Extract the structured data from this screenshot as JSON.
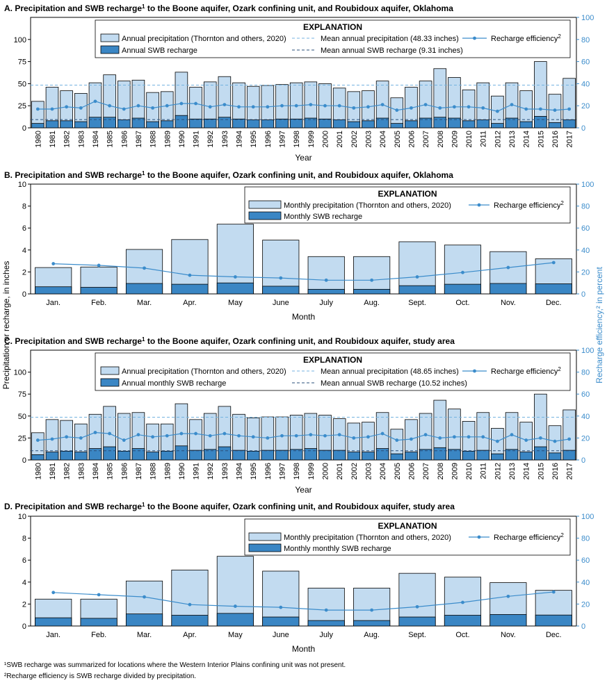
{
  "colors": {
    "precip": "#c2dbf0",
    "recharge": "#3a86c4",
    "efficiency": "#3b8ccb",
    "mean_precip_line": "#74b3e0",
    "mean_recharge_line": "#2a4f7a"
  },
  "axis_labels": {
    "left": "Precipitation or recharge, in inches",
    "right": "Recharge efficiency,² in percent"
  },
  "footnotes": [
    "¹SWB recharge was summarized for locations where the Western Interior Plains confining unit was not present.",
    "²Recharge efficiency is SWB recharge divided by precipitation."
  ],
  "chart_data": [
    {
      "id": "A",
      "type": "bar",
      "title": "A. Precipitation and SWB recharge¹ to the Boone aquifer, Ozark confining unit, and Roubidoux aquifer, Oklahoma",
      "xlabel": "Year",
      "ylim": [
        0,
        125
      ],
      "yticks": [
        0,
        25,
        50,
        75,
        100
      ],
      "y2lim": [
        0,
        100
      ],
      "y2ticks": [
        0,
        20,
        40,
        60,
        80,
        100
      ],
      "categories": [
        "1980",
        "1981",
        "1982",
        "1983",
        "1984",
        "1985",
        "1986",
        "1987",
        "1988",
        "1989",
        "1990",
        "1991",
        "1992",
        "1993",
        "1994",
        "1995",
        "1996",
        "1997",
        "1998",
        "1999",
        "2000",
        "2001",
        "2002",
        "2003",
        "2004",
        "2005",
        "2006",
        "2007",
        "2008",
        "2009",
        "2010",
        "2011",
        "2012",
        "2013",
        "2014",
        "2015",
        "2016",
        "2017"
      ],
      "series": [
        {
          "name": "Annual precipitation (Thornton and others, 2020)",
          "values": [
            30,
            46,
            42,
            39,
            51,
            60,
            53,
            54,
            40,
            41,
            63,
            46,
            52,
            58,
            51,
            47,
            48,
            49,
            51,
            52,
            50,
            45,
            41,
            42,
            53,
            34,
            46,
            53,
            67,
            57,
            43,
            51,
            36,
            51,
            42,
            75,
            38,
            56
          ]
        },
        {
          "name": "Annual SWB recharge",
          "values": [
            5,
            8,
            8,
            7,
            12,
            12,
            9,
            11,
            7,
            8,
            14,
            10,
            10,
            12,
            10,
            9,
            9,
            10,
            10,
            11,
            10,
            9,
            7,
            8,
            11,
            5,
            8,
            11,
            12,
            11,
            8,
            9,
            5,
            11,
            7,
            13,
            6,
            9
          ]
        },
        {
          "name": "Recharge efficiency²",
          "axis": "right",
          "values": [
            17,
            17,
            19,
            18,
            24,
            20,
            17,
            20,
            18,
            20,
            22,
            22,
            19,
            21,
            19,
            19,
            19,
            20,
            20,
            21,
            20,
            20,
            18,
            19,
            21,
            16,
            18,
            21,
            18,
            19,
            19,
            18,
            15,
            21,
            17,
            17,
            16,
            17
          ]
        }
      ],
      "mean_lines": [
        {
          "name": "Mean annual precipitation (48.33 inches)",
          "value": 48.33
        },
        {
          "name": "Mean annual SWB recharge (9.31 inches)",
          "value": 9.31
        }
      ],
      "legend": {
        "title": "EXPLANATION",
        "precip": "Annual precipitation (Thornton and others, 2020)",
        "recharge": "Annual SWB recharge",
        "mean_precip": "Mean annual precipitation (48.33 inches)",
        "mean_recharge": "Mean annual SWB recharge (9.31 inches)",
        "efficiency": "Recharge efficiency²"
      }
    },
    {
      "id": "B",
      "type": "bar",
      "title": "B. Precipitation and SWB recharge¹ to the Boone aquifer, Ozark confining unit, and Roubidoux aquifer, Oklahoma",
      "xlabel": "Month",
      "ylim": [
        0,
        10
      ],
      "yticks": [
        0,
        2,
        4,
        6,
        8,
        10
      ],
      "y2lim": [
        0,
        100
      ],
      "y2ticks": [
        0,
        20,
        40,
        60,
        80,
        100
      ],
      "categories": [
        "Jan.",
        "Feb.",
        "Mar.",
        "Apr.",
        "May",
        "June",
        "July",
        "Aug.",
        "Sept.",
        "Oct.",
        "Nov.",
        "Dec."
      ],
      "series": [
        {
          "name": "Monthly precipitation (Thornton and others, 2020)",
          "values": [
            2.4,
            2.45,
            4.05,
            4.95,
            6.35,
            4.9,
            3.4,
            3.4,
            4.75,
            4.45,
            3.85,
            3.2
          ]
        },
        {
          "name": "Monthly SWB recharge",
          "values": [
            0.65,
            0.6,
            0.95,
            0.88,
            1.0,
            0.7,
            0.42,
            0.42,
            0.75,
            0.88,
            0.95,
            0.92
          ]
        },
        {
          "name": "Recharge efficiency²",
          "axis": "right",
          "values": [
            27.5,
            26,
            23.5,
            17,
            15.5,
            14.5,
            12.5,
            12.5,
            15.5,
            19.5,
            24,
            28.5
          ]
        }
      ],
      "legend": {
        "title": "EXPLANATION",
        "precip": "Monthly precipitation (Thornton and others, 2020)",
        "recharge": "Monthly SWB recharge",
        "efficiency": "Recharge efficiency²"
      }
    },
    {
      "id": "C",
      "type": "bar",
      "title": "C. Precipitation and SWB recharge¹ to the Boone aquifer, Ozark confining unit, and Roubidoux aquifer, study area",
      "xlabel": "Year",
      "ylim": [
        0,
        125
      ],
      "yticks": [
        0,
        25,
        50,
        75,
        100
      ],
      "y2lim": [
        0,
        100
      ],
      "y2ticks": [
        0,
        20,
        40,
        60,
        80,
        100
      ],
      "categories": [
        "1980",
        "1981",
        "1982",
        "1983",
        "1984",
        "1985",
        "1986",
        "1987",
        "1988",
        "1989",
        "1990",
        "1991",
        "1992",
        "1993",
        "1994",
        "1995",
        "1996",
        "1997",
        "1998",
        "1999",
        "2000",
        "2001",
        "2002",
        "2003",
        "2004",
        "2005",
        "2006",
        "2007",
        "2008",
        "2009",
        "2010",
        "2011",
        "2012",
        "2013",
        "2014",
        "2015",
        "2016",
        "2017"
      ],
      "series": [
        {
          "name": "Annual precipitation (Thornton and others, 2020)",
          "values": [
            31,
            46,
            45,
            41,
            52,
            61,
            53,
            54,
            41,
            41,
            64,
            46,
            53,
            61,
            52,
            48,
            49,
            49,
            51,
            53,
            51,
            47,
            42,
            43,
            54,
            35,
            46,
            53,
            68,
            58,
            44,
            54,
            36,
            54,
            43,
            75,
            39,
            57
          ]
        },
        {
          "name": "Annual monthly SWB recharge",
          "values": [
            6,
            9,
            10,
            9,
            13,
            15,
            10,
            13,
            9,
            10,
            16,
            11,
            12,
            15,
            11,
            10,
            11,
            11,
            12,
            13,
            11,
            11,
            9,
            9,
            13,
            7,
            9,
            12,
            14,
            12,
            10,
            11,
            7,
            12,
            9,
            15,
            8,
            11
          ]
        },
        {
          "name": "Recharge efficiency²",
          "axis": "right",
          "values": [
            18,
            19,
            21,
            20,
            25,
            24,
            18,
            23,
            21,
            22,
            24,
            24,
            22,
            24,
            22,
            21,
            20,
            22,
            22,
            23,
            22,
            23,
            20,
            21,
            24,
            18,
            19,
            23,
            20,
            21,
            21,
            21,
            17,
            23,
            18,
            20,
            17,
            19
          ]
        }
      ],
      "mean_lines": [
        {
          "name": "Mean annual precipitation (48.65 inches)",
          "value": 48.65
        },
        {
          "name": "Mean annual SWB recharge (10.52 inches)",
          "value": 10.52
        }
      ],
      "legend": {
        "title": "EXPLANATION",
        "precip": "Annual precipitation (Thornton and others, 2020)",
        "recharge": "Annual monthly SWB recharge",
        "mean_precip": "Mean annual precipitation (48.65 inches)",
        "mean_recharge": "Mean annual SWB recharge (10.52 inches)",
        "efficiency": "Recharge efficiency²"
      }
    },
    {
      "id": "D",
      "type": "bar",
      "title": "D. Precipitation and SWB recharge¹ to the Boone aquifer, Ozark confining unit, and Roubidoux aquifer, study area",
      "xlabel": "Month",
      "ylim": [
        0,
        10
      ],
      "yticks": [
        0,
        2,
        4,
        6,
        8,
        10
      ],
      "y2lim": [
        0,
        100
      ],
      "y2ticks": [
        0,
        20,
        40,
        60,
        80,
        100
      ],
      "categories": [
        "Jan.",
        "Feb.",
        "Mar.",
        "Apr.",
        "May",
        "June",
        "July",
        "Aug.",
        "Sept.",
        "Oct.",
        "Nov.",
        "Dec."
      ],
      "series": [
        {
          "name": "Monthly precipitation (Thornton and others, 2020)",
          "values": [
            2.45,
            2.45,
            4.1,
            5.1,
            6.35,
            5.0,
            3.45,
            3.45,
            4.8,
            4.45,
            3.95,
            3.25
          ]
        },
        {
          "name": "Monthly monthly SWB recharge",
          "values": [
            0.75,
            0.7,
            1.1,
            0.98,
            1.15,
            0.82,
            0.5,
            0.5,
            0.82,
            0.98,
            1.05,
            1.0
          ]
        },
        {
          "name": "Recharge efficiency²",
          "axis": "right",
          "values": [
            30.5,
            28.5,
            26.5,
            19.5,
            18,
            17,
            14.5,
            14.5,
            17.5,
            21.5,
            27,
            31
          ]
        }
      ],
      "legend": {
        "title": "EXPLANATION",
        "precip": "Monthly precipitation (Thornton and others, 2020)",
        "recharge": "Monthly monthly SWB recharge",
        "efficiency": "Recharge efficiency²"
      }
    }
  ]
}
